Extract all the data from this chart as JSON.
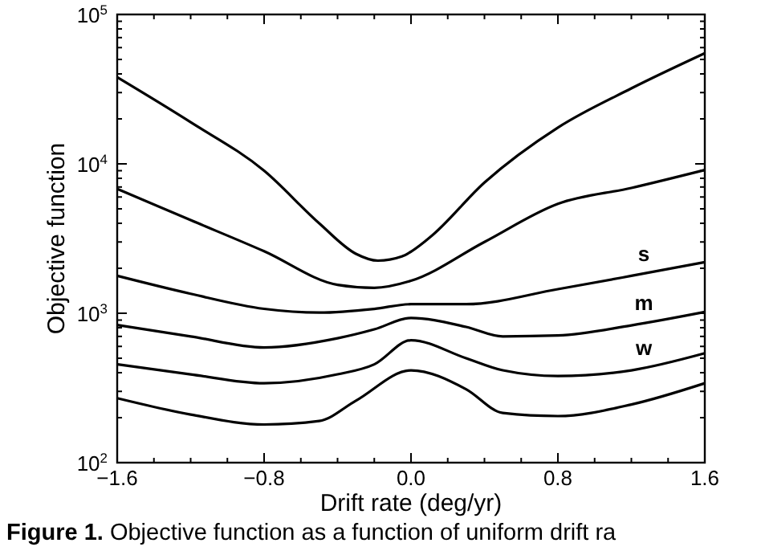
{
  "chart_data": {
    "type": "line",
    "xlabel": "Drift rate (deg/yr)",
    "ylabel": "Objective function",
    "log": "y",
    "grid": false,
    "legend": "right",
    "marker": "none",
    "line_style": "solid",
    "xlim": [
      -1.6,
      1.6
    ],
    "xticks": [
      {
        "value": -1.6,
        "label": "−1.6"
      },
      {
        "value": -1.4,
        "label": null
      },
      {
        "value": -1.2,
        "label": null
      },
      {
        "value": -1.0,
        "label": null
      },
      {
        "value": -0.8,
        "label": "−0.8"
      },
      {
        "value": -0.6,
        "label": null
      },
      {
        "value": -0.4,
        "label": null
      },
      {
        "value": -0.2,
        "label": null
      },
      {
        "value": 0,
        "label": "0.0"
      },
      {
        "value": 0.2,
        "label": null
      },
      {
        "value": 0.4,
        "label": null
      },
      {
        "value": 0.6,
        "label": null
      },
      {
        "value": 0.8,
        "label": "0.8"
      },
      {
        "value": 1.0,
        "label": null
      },
      {
        "value": 1.2,
        "label": null
      },
      {
        "value": 1.4,
        "label": null
      },
      {
        "value": 1.6,
        "label": "1.6"
      }
    ],
    "ylim": [
      100,
      100000
    ],
    "yticks": [
      {
        "value": 100,
        "label": "10$^{2}$"
      },
      {
        "value": 1000,
        "label": "10$^{3}$"
      },
      {
        "value": 10000,
        "label": "10$^{4}$"
      },
      {
        "value": 100000,
        "label": "10$^{5}$"
      }
    ],
    "annotations": [
      "Figure 1. Objective function as a function of uniform drift ra"
    ],
    "series": [
      {
        "color": "#000000",
        "x": [
          -1.6,
          -1.2,
          -0.8,
          -0.5,
          -0.3,
          -0.18,
          -0.05,
          0.1,
          0.4,
          0.8,
          1.2,
          1.6
        ],
        "values": [
          38000,
          19000,
          9000,
          4000,
          2500,
          2250,
          2400,
          3200,
          7500,
          17500,
          32000,
          55000
        ]
      },
      {
        "color": "#000000",
        "x": [
          -1.6,
          -1.2,
          -0.8,
          -0.4,
          -0.2,
          0,
          0.4,
          0.8,
          1.2,
          1.6
        ],
        "values": [
          6800,
          4200,
          2600,
          1550,
          1480,
          1650,
          3000,
          5400,
          6900,
          9100
        ]
      },
      {
        "name": "s",
        "color": "#000000",
        "x": [
          -1.6,
          -1.2,
          -0.8,
          -0.5,
          -0.2,
          0,
          0.3,
          0.8,
          1.2,
          1.6
        ],
        "values": [
          1780,
          1350,
          1070,
          1010,
          1070,
          1150,
          1150,
          1450,
          1780,
          2200
        ]
      },
      {
        "name": "m",
        "color": "#000000",
        "x": [
          -1.6,
          -1.2,
          -0.8,
          -0.4,
          -0.2,
          0,
          0.3,
          0.5,
          0.8,
          1.2,
          1.6
        ],
        "values": [
          835,
          700,
          590,
          680,
          780,
          930,
          810,
          700,
          710,
          830,
          1020
        ]
      },
      {
        "name": "w",
        "color": "#000000",
        "x": [
          -1.6,
          -1.2,
          -0.8,
          -0.4,
          -0.2,
          0,
          0.3,
          0.5,
          0.8,
          1.2,
          1.6
        ],
        "values": [
          455,
          390,
          340,
          390,
          455,
          660,
          500,
          415,
          380,
          415,
          540
        ]
      },
      {
        "color": "#000000",
        "x": [
          -1.6,
          -1.2,
          -0.8,
          -0.5,
          -0.3,
          0,
          0.3,
          0.5,
          0.8,
          1.2,
          1.6
        ],
        "values": [
          270,
          210,
          180,
          190,
          260,
          415,
          310,
          215,
          205,
          245,
          340
        ]
      }
    ]
  }
}
